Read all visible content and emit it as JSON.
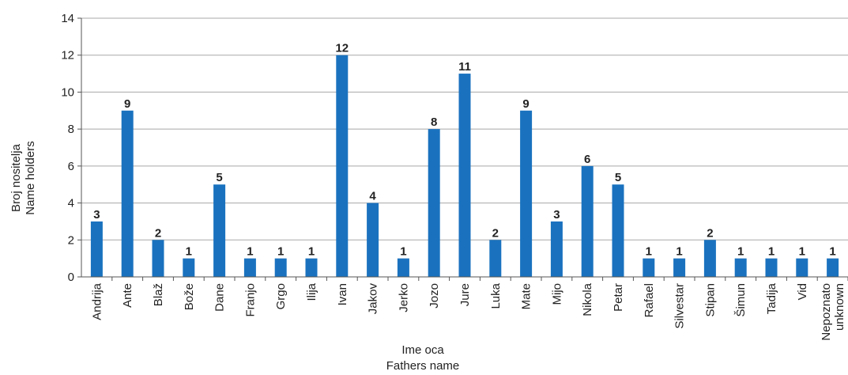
{
  "chart_data": {
    "type": "bar",
    "categories": [
      "Andrija",
      "Ante",
      "Blaž",
      "Bože",
      "Dane",
      "Franjo",
      "Grgo",
      "Ilija",
      "Ivan",
      "Jakov",
      "Jerko",
      "Jozo",
      "Jure",
      "Luka",
      "Mate",
      "Mijo",
      "Nikola",
      "Petar",
      "Rafael",
      "Silvestar",
      "Stipan",
      "Šimun",
      "Tadija",
      "Vid",
      "Nepoznato\nunknown"
    ],
    "values": [
      3,
      9,
      2,
      1,
      5,
      1,
      1,
      1,
      12,
      4,
      1,
      8,
      11,
      2,
      9,
      3,
      6,
      5,
      1,
      1,
      2,
      1,
      1,
      1,
      1
    ],
    "xlabel": [
      "Ime oca",
      "Fathers name"
    ],
    "ylabel": [
      "Broj nositelja",
      "Name holders"
    ],
    "ylim": [
      0,
      14
    ],
    "yticks": [
      0,
      2,
      4,
      6,
      8,
      10,
      12,
      14
    ],
    "grid": true,
    "legend": "none",
    "bar_color": "#1a72bf",
    "data_labels": true
  }
}
